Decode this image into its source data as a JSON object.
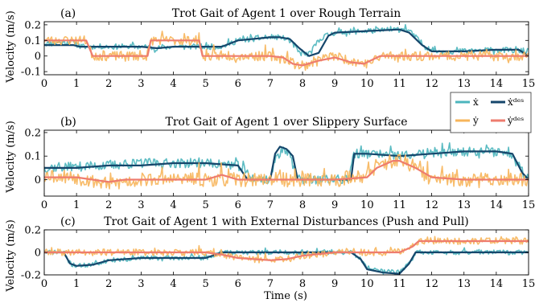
{
  "figure": {
    "xlabel": "Time (s)",
    "ylabel": "Velocity (m/s)",
    "legend": {
      "placement": "right, between panels (a) and (b)",
      "entries": [
        {
          "label": "ẋ",
          "color": "#4BB5BD"
        },
        {
          "label": "ẋᵈᵉˢ",
          "color": "#15466B"
        },
        {
          "label": "ẏ",
          "color": "#F7B55A"
        },
        {
          "label": "ẏᵈᵉˢ",
          "color": "#EE7C6E"
        }
      ]
    }
  },
  "chart_data": [
    {
      "type": "line",
      "panel_label": "(a)",
      "title": "Trot Gait of Agent 1 over Rough Terrain",
      "xlim": [
        0,
        15
      ],
      "ylim": [
        -0.12,
        0.22
      ],
      "xticks": [
        "0",
        "1",
        "2",
        "3",
        "4",
        "5",
        "6",
        "7",
        "8",
        "9",
        "10",
        "11",
        "12",
        "13",
        "14",
        "15"
      ],
      "yticks": [
        {
          "v": 0.2,
          "t": "0.2"
        },
        {
          "v": 0.1,
          "t": "0.1"
        },
        {
          "v": 0,
          "t": "0"
        },
        {
          "v": -0.1,
          "t": "-0.1"
        }
      ],
      "grid": false,
      "series": [
        {
          "name": "ẋ",
          "color": "#4BB5BD",
          "noise": 0.018,
          "seed": 11,
          "x": [
            0,
            0.9,
            1.1,
            2,
            3,
            3.5,
            4,
            5,
            5.5,
            6,
            7,
            7.3,
            7.6,
            7.9,
            8.2,
            8.6,
            9,
            10,
            11,
            11.2,
            11.8,
            12.2,
            13,
            14,
            15
          ],
          "y": [
            0.08,
            0.09,
            0.06,
            0.06,
            0.06,
            0.05,
            0.06,
            0.06,
            0.06,
            0.1,
            0.12,
            0.12,
            0.1,
            0.02,
            0.01,
            0.12,
            0.15,
            0.16,
            0.17,
            0.18,
            0.06,
            0.03,
            0.03,
            0.04,
            0.03
          ]
        },
        {
          "name": "ẋᵈᵉˢ",
          "color": "#15466B",
          "noise": 0,
          "x": [
            0,
            0.9,
            1.1,
            2,
            3,
            3.5,
            4,
            5,
            5.5,
            6,
            7,
            7.3,
            7.6,
            7.9,
            8.2,
            8.5,
            8.8,
            9,
            10,
            11,
            11.3,
            11.7,
            12,
            12.3,
            13,
            14,
            14.7,
            15
          ],
          "y": [
            0.07,
            0.07,
            0.06,
            0.06,
            0.06,
            0.05,
            0.06,
            0.06,
            0.06,
            0.1,
            0.12,
            0.12,
            0.11,
            0.05,
            0.0,
            0.02,
            0.13,
            0.15,
            0.16,
            0.17,
            0.15,
            0.07,
            0.03,
            0.03,
            0.03,
            0.04,
            0.04,
            0.0
          ]
        },
        {
          "name": "ẏ",
          "color": "#F7B55A",
          "noise": 0.03,
          "seed": 23,
          "x": [
            0,
            1.3,
            1.5,
            3.2,
            3.3,
            4.8,
            4.9,
            6,
            7,
            7.5,
            7.8,
            8,
            8.5,
            9,
            9.5,
            10,
            10.5,
            11,
            12,
            13,
            14,
            15
          ],
          "y": [
            0.1,
            0.1,
            0.0,
            0.0,
            0.1,
            0.1,
            0.0,
            0.0,
            0.0,
            -0.02,
            -0.05,
            -0.07,
            -0.02,
            0.0,
            -0.03,
            -0.05,
            0.0,
            0.0,
            0.0,
            0.0,
            0.0,
            0.0
          ]
        },
        {
          "name": "ẏᵈᵉˢ",
          "color": "#EE7C6E",
          "noise": 0,
          "x": [
            0,
            1.3,
            1.5,
            3.2,
            3.3,
            4.8,
            4.9,
            6,
            7,
            7.4,
            7.7,
            8,
            8.5,
            9,
            9.5,
            9.9,
            10.4,
            11,
            12,
            13,
            14,
            15
          ],
          "y": [
            0.1,
            0.1,
            0.0,
            0.0,
            0.1,
            0.1,
            0.0,
            0.0,
            0.0,
            -0.01,
            -0.05,
            -0.06,
            -0.03,
            -0.01,
            -0.04,
            -0.05,
            0.0,
            0.0,
            0.0,
            0.0,
            0.0,
            0.0
          ]
        }
      ]
    },
    {
      "type": "line",
      "panel_label": "(b)",
      "title": "Trot Gait of Agent 1 over Slippery Surface",
      "xlim": [
        0,
        15
      ],
      "ylim": [
        -0.07,
        0.21
      ],
      "xticks": [
        "0",
        "1",
        "2",
        "3",
        "4",
        "5",
        "6",
        "7",
        "8",
        "9",
        "10",
        "11",
        "12",
        "13",
        "14",
        "15"
      ],
      "yticks": [
        {
          "v": 0.2,
          "t": "0.2"
        },
        {
          "v": 0.1,
          "t": "0.1"
        },
        {
          "v": 0,
          "t": "0"
        }
      ],
      "grid": false,
      "series": [
        {
          "name": "ẋ",
          "color": "#4BB5BD",
          "noise": 0.02,
          "seed": 37,
          "x": [
            0,
            2,
            3,
            4,
            5,
            6,
            6.2,
            6.5,
            7,
            7.2,
            7.4,
            7.6,
            7.8,
            8,
            9,
            9.4,
            9.6,
            10,
            11,
            12,
            13,
            14,
            14.5,
            15
          ],
          "y": [
            0.05,
            0.06,
            0.07,
            0.07,
            0.07,
            0.06,
            0.04,
            0.0,
            0.0,
            0.1,
            0.13,
            0.12,
            0.0,
            0.0,
            0.0,
            0.0,
            0.11,
            0.11,
            0.1,
            0.11,
            0.12,
            0.12,
            0.11,
            0.0
          ]
        },
        {
          "name": "ẋᵈᵉˢ",
          "color": "#15466B",
          "noise": 0,
          "x": [
            0,
            1,
            2,
            3,
            4,
            5,
            6,
            6.15,
            6.3,
            6.6,
            7,
            7.15,
            7.3,
            7.5,
            7.7,
            7.85,
            8,
            9,
            9.5,
            9.6,
            10,
            11,
            12,
            13,
            14,
            14.5,
            14.8,
            15
          ],
          "y": [
            0.05,
            0.05,
            0.06,
            0.06,
            0.07,
            0.07,
            0.06,
            0.03,
            0.0,
            0.0,
            0.0,
            0.11,
            0.14,
            0.13,
            0.1,
            0.0,
            0.0,
            0.0,
            0.0,
            0.11,
            0.11,
            0.1,
            0.11,
            0.12,
            0.12,
            0.11,
            0.03,
            0.0
          ]
        },
        {
          "name": "ẏ",
          "color": "#F7B55A",
          "noise": 0.03,
          "seed": 53,
          "x": [
            0,
            1,
            2,
            3,
            4,
            5,
            6,
            7,
            8,
            9,
            10,
            10.5,
            11,
            11.5,
            12,
            13,
            14,
            15
          ],
          "y": [
            0.02,
            0.01,
            -0.02,
            0.0,
            0.0,
            0.0,
            0.0,
            0.0,
            0.0,
            0.0,
            0.02,
            0.07,
            0.08,
            0.05,
            0.0,
            0.0,
            0.0,
            0.0
          ]
        },
        {
          "name": "ẏᵈᵉˢ",
          "color": "#EE7C6E",
          "noise": 0,
          "x": [
            0,
            1,
            2,
            2.5,
            3,
            4,
            5,
            5.5,
            6,
            7,
            8,
            9,
            10,
            10.3,
            10.8,
            11,
            11.5,
            12,
            13,
            14,
            15
          ],
          "y": [
            0.01,
            0.01,
            -0.01,
            0.0,
            0.0,
            0.0,
            0.0,
            0.02,
            0.0,
            0.0,
            0.0,
            0.0,
            0.01,
            0.05,
            0.08,
            0.08,
            0.05,
            0.01,
            0.0,
            0.0,
            0.0
          ]
        }
      ]
    },
    {
      "type": "line",
      "panel_label": "(c)",
      "title": "Trot Gait of Agent 1 with External Disturbances (Push and Pull)",
      "xlim": [
        0,
        15
      ],
      "ylim": [
        -0.2,
        0.2
      ],
      "xticks": [
        "0",
        "1",
        "2",
        "3",
        "4",
        "5",
        "6",
        "7",
        "8",
        "9",
        "10",
        "11",
        "12",
        "13",
        "14",
        "15"
      ],
      "yticks": [
        {
          "v": 0.2,
          "t": "0.2"
        },
        {
          "v": 0,
          "t": "0"
        },
        {
          "v": -0.2,
          "t": "-0.2"
        }
      ],
      "grid": false,
      "series": [
        {
          "name": "ẋ",
          "color": "#4BB5BD",
          "noise": 0.02,
          "seed": 71,
          "x": [
            0,
            0.6,
            0.8,
            1,
            1.5,
            2,
            3,
            4,
            5,
            5.5,
            6,
            7,
            8,
            9,
            9.5,
            9.8,
            10,
            10.5,
            11,
            11.3,
            11.5,
            12,
            13,
            14,
            15
          ],
          "y": [
            0.0,
            0.0,
            -0.1,
            -0.12,
            -0.11,
            -0.07,
            -0.05,
            -0.05,
            -0.05,
            0.0,
            0.0,
            0.0,
            0.0,
            0.0,
            0.0,
            -0.05,
            -0.14,
            -0.17,
            -0.18,
            -0.1,
            0.0,
            0.0,
            0.0,
            0.0,
            0.0
          ]
        },
        {
          "name": "ẋᵈᵉˢ",
          "color": "#15466B",
          "noise": 0,
          "x": [
            0,
            0.6,
            0.8,
            1,
            1.5,
            2,
            3,
            4,
            5,
            5.5,
            6,
            7,
            8,
            9,
            9.5,
            9.8,
            10,
            10.5,
            11,
            11.3,
            11.5,
            12,
            13,
            14,
            15
          ],
          "y": [
            0.0,
            0.0,
            -0.1,
            -0.12,
            -0.11,
            -0.07,
            -0.05,
            -0.05,
            -0.05,
            0.0,
            0.0,
            0.0,
            0.0,
            0.0,
            0.0,
            -0.06,
            -0.15,
            -0.18,
            -0.19,
            -0.1,
            0.0,
            0.0,
            0.0,
            0.0,
            0.0
          ]
        },
        {
          "name": "ẏ",
          "color": "#F7B55A",
          "noise": 0.03,
          "seed": 89,
          "x": [
            0,
            1,
            2,
            3,
            4,
            5,
            5.5,
            6,
            7,
            7.5,
            8,
            9,
            10,
            11,
            11.4,
            11.6,
            12,
            13,
            14,
            15
          ],
          "y": [
            0.0,
            0.0,
            0.0,
            0.0,
            0.0,
            0.0,
            -0.02,
            -0.05,
            -0.07,
            -0.06,
            -0.03,
            0.0,
            0.0,
            0.0,
            0.05,
            0.1,
            0.1,
            0.1,
            0.1,
            0.1
          ]
        },
        {
          "name": "ẏᵈᵉˢ",
          "color": "#EE7C6E",
          "noise": 0,
          "x": [
            0,
            1,
            2,
            3,
            4,
            5,
            5.5,
            6,
            7,
            7.5,
            8,
            9,
            10,
            11,
            11.4,
            11.6,
            12,
            13,
            14,
            15
          ],
          "y": [
            0.0,
            0.0,
            0.0,
            0.0,
            0.0,
            0.0,
            -0.02,
            -0.05,
            -0.07,
            -0.06,
            -0.03,
            0.0,
            0.0,
            0.0,
            0.05,
            0.1,
            0.1,
            0.1,
            0.1,
            0.1
          ]
        }
      ]
    }
  ]
}
